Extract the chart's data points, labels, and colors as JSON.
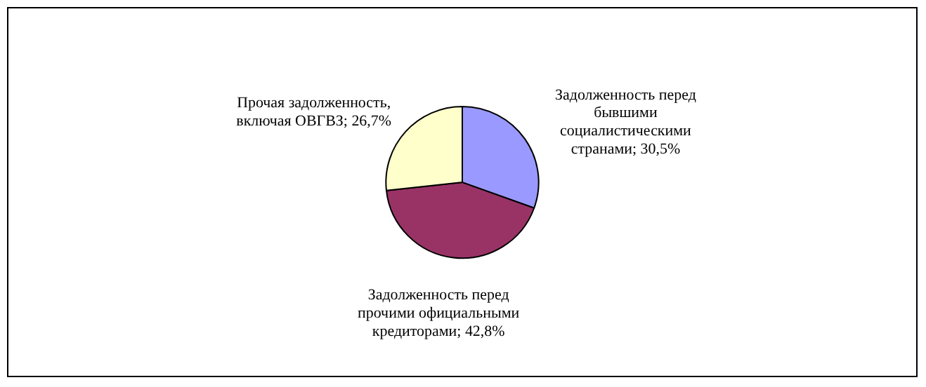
{
  "chart_data": {
    "type": "pie",
    "categories": [
      "Задолженность перед бывшими социалистическими странами",
      "Задолженность перед прочими официальными кредиторами",
      "Прочая задолженность, включая ОВГВЗ"
    ],
    "values": [
      30.5,
      42.8,
      26.7
    ],
    "value_labels": [
      "30,5%",
      "42,8%",
      "26,7%"
    ],
    "colors": [
      "#9999ff",
      "#993366",
      "#ffffcc"
    ],
    "legend": false
  }
}
